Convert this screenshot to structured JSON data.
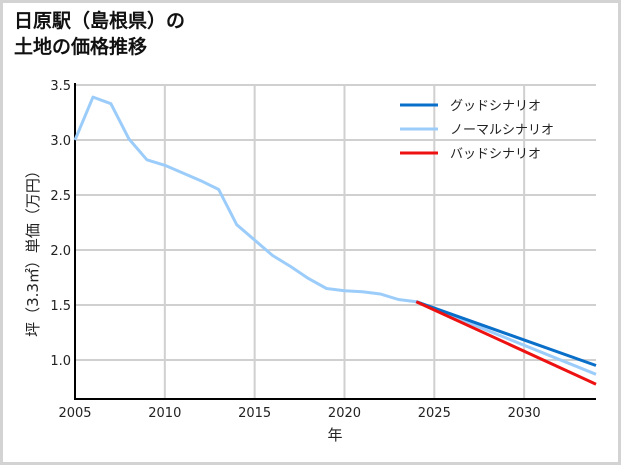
{
  "title": {
    "line1": "日原駅（島根県）の",
    "line2": "土地の価格推移"
  },
  "chart_data": {
    "type": "line",
    "title": "日原駅（島根県）の土地の価格推移",
    "xlabel": "年",
    "ylabel": "坪（3.3㎡）単価（万円）",
    "xlim": [
      2005,
      2034
    ],
    "ylim": [
      0.645,
      3.5
    ],
    "xticks": [
      2005,
      2010,
      2015,
      2020,
      2025,
      2030
    ],
    "yticks": [
      1.0,
      1.5,
      2.0,
      2.5,
      3.0,
      3.5
    ],
    "ytick_labels": [
      "1.0",
      "1.5",
      "2.0",
      "2.5",
      "3.0",
      "3.5"
    ],
    "grid": true,
    "legend_position": "upper right",
    "series": [
      {
        "name": "グッドシナリオ",
        "color": "#0a6fc9",
        "x": [
          2024,
          2034
        ],
        "values": [
          1.53,
          0.95
        ]
      },
      {
        "name": "ノーマルシナリオ",
        "color": "#9ccdfa",
        "x": [
          2005,
          2006,
          2007,
          2008,
          2009,
          2010,
          2011,
          2012,
          2013,
          2014,
          2015,
          2016,
          2017,
          2018,
          2019,
          2020,
          2021,
          2022,
          2023,
          2024,
          2034
        ],
        "values": [
          3.0,
          3.39,
          3.33,
          3.01,
          2.82,
          2.77,
          2.7,
          2.63,
          2.55,
          2.23,
          2.09,
          1.95,
          1.85,
          1.74,
          1.65,
          1.63,
          1.62,
          1.6,
          1.55,
          1.53,
          0.87
        ]
      },
      {
        "name": "バッドシナリオ",
        "color": "#ee1111",
        "x": [
          2024,
          2034
        ],
        "values": [
          1.53,
          0.78
        ]
      }
    ]
  },
  "colors": {
    "grid": "#d0d0d0",
    "axis": "#000000",
    "frame": "#d3d3d3"
  }
}
